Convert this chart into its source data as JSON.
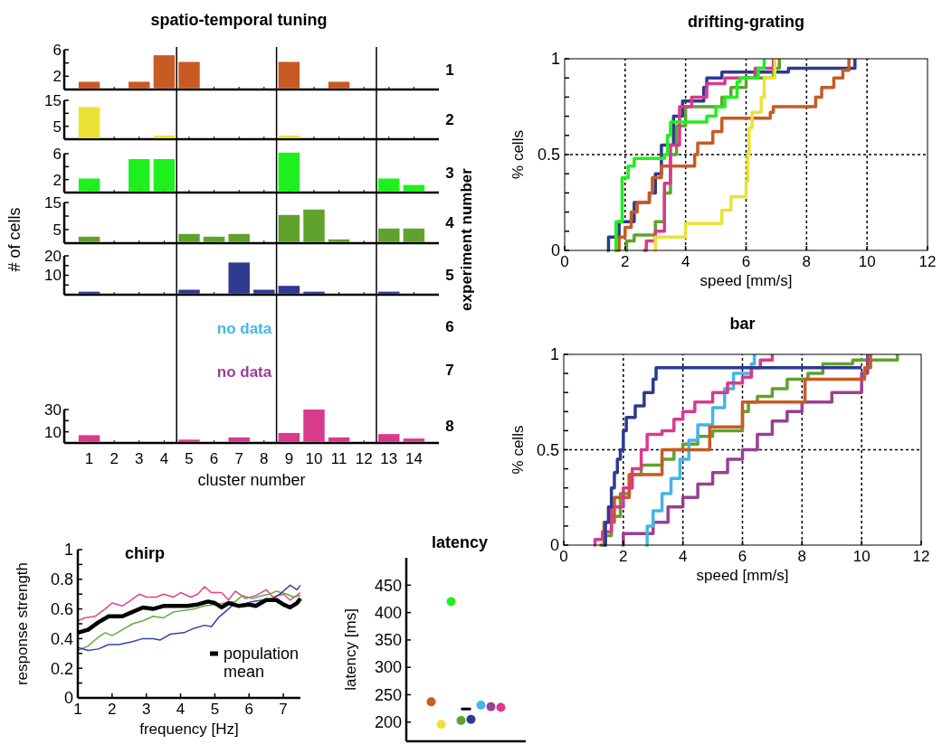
{
  "chart_data": [
    {
      "type": "bar",
      "title": "spatio-temporal tuning",
      "y2label": "1",
      "color": "#c85a24",
      "x": [
        1,
        2,
        3,
        4,
        5,
        6,
        7,
        8,
        9,
        10,
        11
      ],
      "values": [
        1,
        null,
        1,
        5,
        4,
        null,
        null,
        null,
        4,
        null,
        1
      ],
      "xlim": [
        0,
        15
      ],
      "xticks": [
        1,
        2,
        3,
        4,
        5,
        6,
        7,
        8,
        9,
        10,
        11,
        12,
        13,
        14
      ],
      "ylim": [
        0,
        6
      ],
      "yticks": [
        2,
        {
          "value": 4,
          "label": null
        },
        6
      ],
      "tick_labels": "y",
      "ref_lines": [
        {
          "axis": "x",
          "value": 4.5
        },
        {
          "axis": "x",
          "value": 8.5
        },
        {
          "axis": "x",
          "value": 12.5
        }
      ]
    },
    {
      "type": "bar",
      "y2label": "2",
      "color": "#ece235",
      "x": [
        1,
        2,
        3,
        4,
        5,
        6,
        7,
        8,
        9
      ],
      "values": [
        12,
        null,
        null,
        1,
        null,
        null,
        null,
        null,
        1
      ],
      "xlim": [
        0,
        15
      ],
      "xticks": [
        1,
        2,
        3,
        4,
        5,
        6,
        7,
        8,
        9,
        10,
        11,
        12,
        13,
        14
      ],
      "ylim": [
        0,
        15
      ],
      "yticks": [
        5,
        {
          "value": 10,
          "label": null
        },
        15
      ],
      "tick_labels": "y",
      "ref_lines": [
        {
          "axis": "x",
          "value": 4.5
        },
        {
          "axis": "x",
          "value": 8.5
        },
        {
          "axis": "x",
          "value": 12.5
        }
      ]
    },
    {
      "type": "bar",
      "y2label": "3",
      "color": "#1ef01e",
      "x": [
        1,
        2,
        3,
        4,
        5,
        6,
        7,
        8,
        9,
        10,
        11,
        12,
        13,
        14
      ],
      "values": [
        2,
        null,
        5,
        5,
        null,
        null,
        null,
        null,
        6,
        null,
        null,
        null,
        2,
        1
      ],
      "xlim": [
        0,
        15
      ],
      "xticks": [
        1,
        2,
        3,
        4,
        5,
        6,
        7,
        8,
        9,
        10,
        11,
        12,
        13,
        14
      ],
      "ylim": [
        0,
        6
      ],
      "yticks": [
        2,
        {
          "value": 4,
          "label": null
        },
        6
      ],
      "tick_labels": "y",
      "ref_lines": [
        {
          "axis": "x",
          "value": 4.5
        },
        {
          "axis": "x",
          "value": 8.5
        },
        {
          "axis": "x",
          "value": 12.5
        }
      ]
    },
    {
      "type": "bar",
      "y2label": "4",
      "ylabel": "# of cells",
      "annotations": [
        "experiment number"
      ],
      "color": "#60a22c",
      "x": [
        1,
        2,
        3,
        4,
        5,
        6,
        7,
        8,
        9,
        10,
        11,
        12,
        13,
        14
      ],
      "values": [
        2,
        null,
        null,
        null,
        3,
        2,
        3,
        null,
        10,
        12,
        1,
        null,
        5,
        5
      ],
      "xlim": [
        0,
        15
      ],
      "xticks": [
        1,
        2,
        3,
        4,
        5,
        6,
        7,
        8,
        9,
        10,
        11,
        12,
        13,
        14
      ],
      "ylim": [
        0,
        15
      ],
      "yticks": [
        5,
        {
          "value": 10,
          "label": null
        },
        15
      ],
      "tick_labels": "y",
      "ref_lines": [
        {
          "axis": "x",
          "value": 4.5
        },
        {
          "axis": "x",
          "value": 8.5
        },
        {
          "axis": "x",
          "value": 12.5
        }
      ]
    },
    {
      "type": "bar",
      "y2label": "5",
      "color": "#2e3a90",
      "x": [
        1,
        2,
        3,
        4,
        5,
        6,
        7,
        8,
        9,
        10,
        11,
        12,
        13
      ],
      "values": [
        1,
        null,
        null,
        null,
        2,
        null,
        16,
        2,
        4,
        1,
        null,
        null,
        1
      ],
      "xlim": [
        0,
        15
      ],
      "xticks": [
        1,
        2,
        3,
        4,
        5,
        6,
        7,
        8,
        9,
        10,
        11,
        12,
        13,
        14
      ],
      "ylim": [
        0,
        20
      ],
      "yticks": [
        {
          "value": 5,
          "label": null
        },
        10,
        {
          "value": 15,
          "label": null
        },
        20
      ],
      "tick_labels": "y",
      "ref_lines": [
        {
          "axis": "x",
          "value": 4.5
        },
        {
          "axis": "x",
          "value": 8.5
        },
        {
          "axis": "x",
          "value": 12.5
        }
      ]
    },
    {
      "type": "other",
      "y2label": "6",
      "annotations": [
        "no data"
      ],
      "color": "#45b5e8"
    },
    {
      "type": "other",
      "y2label": "7",
      "annotations": [
        "no data"
      ],
      "color": "#9a3f92"
    },
    {
      "type": "bar",
      "y2label": "8",
      "xlabel": "cluster number",
      "color": "#d93a8c",
      "x": [
        1,
        2,
        3,
        4,
        5,
        6,
        7,
        8,
        9,
        10,
        11,
        12,
        13,
        14
      ],
      "values": [
        6,
        null,
        null,
        null,
        2,
        null,
        4,
        null,
        8,
        29,
        4,
        null,
        7,
        3
      ],
      "xlim": [
        0,
        15
      ],
      "xticks": [
        1,
        2,
        3,
        4,
        5,
        6,
        7,
        8,
        9,
        10,
        11,
        12,
        13,
        14
      ],
      "ylim": [
        0,
        30
      ],
      "yticks": [
        10,
        {
          "value": 20,
          "label": null
        },
        30
      ],
      "ref_lines": [
        {
          "axis": "x",
          "value": 4.5
        },
        {
          "axis": "x",
          "value": 8.5
        },
        {
          "axis": "x",
          "value": 12.5
        }
      ]
    },
    {
      "type": "step",
      "title": "drifting-grating",
      "xlabel": "speed [mm/s]",
      "ylabel": "% cells",
      "xlim": [
        0,
        12
      ],
      "xticks": [
        0,
        2,
        4,
        6,
        8,
        10,
        12
      ],
      "ylim": [
        0,
        1
      ],
      "yticks": [
        0,
        {
          "value": 0.1,
          "label": null
        },
        {
          "value": 0.2,
          "label": null
        },
        {
          "value": 0.3,
          "label": null
        },
        {
          "value": 0.4,
          "label": null
        },
        0.5,
        {
          "value": 0.6,
          "label": null
        },
        {
          "value": 0.7,
          "label": null
        },
        {
          "value": 0.8,
          "label": null
        },
        {
          "value": 0.9,
          "label": null
        },
        1
      ],
      "grid": true,
      "series": [
        {
          "color": "#2e3a90",
          "x": [
            1.4,
            1.45,
            1.8,
            2.3,
            2.8,
            3.0,
            3.2,
            3.6,
            3.9,
            4.6,
            4.7,
            5.2,
            7.4,
            9.6
          ],
          "values": [
            0,
            0.07,
            0.15,
            0.25,
            0.3,
            0.4,
            0.55,
            0.7,
            0.78,
            0.85,
            0.9,
            0.93,
            0.95,
            1
          ]
        },
        {
          "color": "#c85a24",
          "x": [
            1.7,
            1.8,
            2.0,
            2.2,
            2.4,
            2.8,
            2.9,
            3.2,
            4.3,
            4.4,
            4.9,
            5.2,
            6.8,
            6.9,
            8.3,
            8.5,
            8.9,
            9.2,
            9.4
          ],
          "values": [
            0,
            0.07,
            0.12,
            0.2,
            0.25,
            0.3,
            0.38,
            0.44,
            0.5,
            0.56,
            0.62,
            0.69,
            0.72,
            0.75,
            0.8,
            0.85,
            0.9,
            0.94,
            1
          ]
        },
        {
          "color": "#60a22c",
          "x": [
            2.0,
            2.05,
            2.3,
            3.0,
            3.3,
            3.5,
            3.7,
            4.0,
            5.2,
            5.5,
            6.0,
            6.9,
            7.1
          ],
          "values": [
            0,
            0.05,
            0.08,
            0.15,
            0.3,
            0.5,
            0.65,
            0.75,
            0.8,
            0.85,
            0.9,
            0.95,
            1
          ]
        },
        {
          "color": "#d93a8c",
          "x": [
            2.6,
            2.7,
            3.0,
            3.3,
            3.5,
            3.8,
            4.2,
            4.7,
            5.3,
            6.3,
            6.9
          ],
          "values": [
            0,
            0.05,
            0.1,
            0.35,
            0.55,
            0.75,
            0.8,
            0.87,
            0.9,
            0.95,
            1
          ]
        },
        {
          "color": "#ece235",
          "x": [
            2.95,
            3.0,
            4.0,
            5.2,
            5.5,
            6.0,
            6.05,
            6.1,
            6.2,
            6.5,
            6.6,
            6.95
          ],
          "values": [
            0,
            0.07,
            0.14,
            0.21,
            0.28,
            0.36,
            0.5,
            0.64,
            0.72,
            0.8,
            0.9,
            1
          ]
        },
        {
          "color": "#1ef01e",
          "x": [
            1.65,
            1.7,
            1.9,
            2.1,
            2.3,
            3.3,
            3.4,
            3.5,
            4.7,
            5.0,
            5.3,
            5.7,
            5.8,
            6.4,
            6.6
          ],
          "values": [
            0,
            0.15,
            0.38,
            0.44,
            0.48,
            0.5,
            0.6,
            0.67,
            0.7,
            0.75,
            0.8,
            0.88,
            0.9,
            0.95,
            1
          ]
        }
      ]
    },
    {
      "type": "step",
      "title": "bar",
      "xlabel": "speed [mm/s]",
      "ylabel": "% cells",
      "xlim": [
        0,
        12
      ],
      "xticks": [
        0,
        2,
        4,
        6,
        8,
        10,
        12
      ],
      "ylim": [
        0,
        1
      ],
      "yticks": [
        0,
        {
          "value": 0.1,
          "label": null
        },
        {
          "value": 0.2,
          "label": null
        },
        {
          "value": 0.3,
          "label": null
        },
        {
          "value": 0.4,
          "label": null
        },
        0.5,
        {
          "value": 0.6,
          "label": null
        },
        {
          "value": 0.7,
          "label": null
        },
        {
          "value": 0.8,
          "label": null
        },
        {
          "value": 0.9,
          "label": null
        },
        1
      ],
      "grid": true,
      "series": [
        {
          "color": "#60a22c",
          "x": [
            1.2,
            1.4,
            1.6,
            1.9,
            2.2,
            2.6,
            3.3,
            3.7,
            4.0,
            4.5,
            5.0,
            6.0,
            6.2,
            6.5,
            7.0,
            7.5,
            8.2,
            8.7,
            9.7,
            11.2
          ],
          "values": [
            0,
            0.05,
            0.15,
            0.27,
            0.37,
            0.42,
            0.45,
            0.5,
            0.53,
            0.57,
            0.6,
            0.7,
            0.75,
            0.78,
            0.82,
            0.87,
            0.9,
            0.95,
            0.97,
            1
          ]
        },
        {
          "color": "#9a3f92",
          "x": [
            1.95,
            2.0,
            3.0,
            3.5,
            4.0,
            4.5,
            5.0,
            5.5,
            6.0,
            6.5,
            7.0,
            7.5,
            8.0,
            9.0,
            10.0,
            10.2
          ],
          "values": [
            0,
            0.06,
            0.12,
            0.2,
            0.25,
            0.32,
            0.38,
            0.45,
            0.5,
            0.58,
            0.65,
            0.7,
            0.75,
            0.8,
            0.9,
            1
          ]
        },
        {
          "color": "#45b5e8",
          "x": [
            2.75,
            2.8,
            3.0,
            3.3,
            3.6,
            3.9,
            4.2,
            4.5,
            5.0,
            5.4,
            5.7,
            6.3,
            6.4
          ],
          "values": [
            0,
            0.1,
            0.18,
            0.27,
            0.35,
            0.45,
            0.55,
            0.63,
            0.72,
            0.82,
            0.9,
            0.95,
            1
          ]
        },
        {
          "color": "#c85a24",
          "x": [
            1.3,
            1.35,
            1.7,
            2.2,
            3.3,
            4.9,
            6.0,
            8.1,
            10.1,
            10.3
          ],
          "values": [
            0,
            0.12,
            0.25,
            0.37,
            0.5,
            0.62,
            0.75,
            0.87,
            0.93,
            1
          ]
        },
        {
          "color": "#d93a8c",
          "x": [
            1.0,
            1.05,
            1.3,
            1.6,
            2.0,
            2.3,
            2.6,
            2.8,
            3.3,
            3.7,
            4.0,
            4.4,
            5.0,
            5.5,
            6.0,
            6.3,
            6.6,
            7.0
          ],
          "values": [
            0,
            0.03,
            0.07,
            0.2,
            0.3,
            0.4,
            0.5,
            0.58,
            0.6,
            0.66,
            0.7,
            0.75,
            0.8,
            0.85,
            0.88,
            0.93,
            0.97,
            1
          ]
        },
        {
          "color": "#2e3a90",
          "x": [
            1.35,
            1.4,
            1.5,
            1.6,
            1.7,
            1.8,
            1.9,
            2.0,
            2.1,
            2.4,
            2.7,
            3.0,
            3.1,
            10.0
          ],
          "values": [
            0,
            0.12,
            0.2,
            0.3,
            0.38,
            0.45,
            0.5,
            0.6,
            0.67,
            0.73,
            0.8,
            0.87,
            0.93,
            0.93
          ]
        }
      ]
    },
    {
      "type": "line",
      "title": "chirp",
      "xlabel": "frequency [Hz]",
      "ylabel": "response strength",
      "xlim": [
        1,
        7.5
      ],
      "xticks": [
        1,
        2,
        3,
        4,
        5,
        6,
        7
      ],
      "ylim": [
        0,
        1
      ],
      "yticks": [
        0,
        {
          "value": 0.1,
          "label": null
        },
        0.2,
        {
          "value": 0.3,
          "label": null
        },
        0.4,
        {
          "value": 0.5,
          "label": null
        },
        0.6,
        {
          "value": 0.7,
          "label": null
        },
        0.8,
        {
          "value": 0.9,
          "label": null
        },
        1
      ],
      "legend": "bottom right",
      "series": [
        {
          "color": "#e0458f",
          "x": [
            1,
            1.2,
            1.5,
            1.8,
            2,
            2.3,
            2.5,
            2.8,
            3,
            3.3,
            3.5,
            3.8,
            4,
            4.3,
            4.5,
            4.7,
            4.9,
            5.2,
            5.4,
            5.6,
            5.9,
            6.2,
            6.5,
            6.7,
            7,
            7.2,
            7.5
          ],
          "values": [
            0.52,
            0.54,
            0.55,
            0.6,
            0.64,
            0.62,
            0.65,
            0.7,
            0.68,
            0.68,
            0.7,
            0.68,
            0.71,
            0.68,
            0.7,
            0.75,
            0.71,
            0.71,
            0.66,
            0.72,
            0.67,
            0.69,
            0.73,
            0.68,
            0.7,
            0.66,
            0.71
          ]
        },
        {
          "color": "#5fae3b",
          "x": [
            1,
            1.3,
            1.6,
            1.8,
            2,
            2.3,
            2.6,
            2.9,
            3.2,
            3.5,
            3.8,
            4.1,
            4.4,
            4.7,
            5,
            5.3,
            5.6,
            5.8,
            6.1,
            6.4,
            6.6,
            6.8,
            7.1,
            7.3,
            7.5
          ],
          "values": [
            0.32,
            0.35,
            0.41,
            0.44,
            0.42,
            0.46,
            0.5,
            0.52,
            0.55,
            0.54,
            0.58,
            0.59,
            0.6,
            0.62,
            0.63,
            0.64,
            0.65,
            0.69,
            0.67,
            0.69,
            0.7,
            0.72,
            0.7,
            0.68,
            0.69
          ]
        },
        {
          "color": "#3344a0",
          "x": [
            1,
            1.3,
            1.6,
            1.9,
            2.2,
            2.6,
            2.9,
            3.2,
            3.4,
            3.7,
            4.1,
            4.4,
            4.7,
            4.9,
            5.1,
            5.3,
            5.5,
            5.8,
            6.1,
            6.4,
            6.7,
            6.9,
            7.2,
            7.4,
            7.5
          ],
          "values": [
            0.34,
            0.32,
            0.33,
            0.36,
            0.36,
            0.38,
            0.4,
            0.4,
            0.39,
            0.43,
            0.44,
            0.47,
            0.49,
            0.48,
            0.54,
            0.58,
            0.62,
            0.63,
            0.65,
            0.66,
            0.67,
            0.7,
            0.76,
            0.73,
            0.76
          ]
        },
        {
          "name": "population mean",
          "color": "#000000",
          "x": [
            1,
            1.3,
            1.6,
            1.9,
            2.3,
            2.6,
            2.9,
            3.2,
            3.5,
            3.8,
            4.2,
            4.5,
            4.8,
            5,
            5.2,
            5.4,
            5.7,
            6,
            6.2,
            6.5,
            6.8,
            7,
            7.2,
            7.4,
            7.5
          ],
          "values": [
            0.44,
            0.46,
            0.51,
            0.55,
            0.55,
            0.58,
            0.61,
            0.6,
            0.62,
            0.62,
            0.62,
            0.63,
            0.65,
            0.64,
            0.61,
            0.64,
            0.62,
            0.63,
            0.62,
            0.66,
            0.66,
            0.63,
            0.61,
            0.64,
            0.67
          ]
        }
      ]
    },
    {
      "type": "scatter",
      "title": "latency",
      "ylabel": "latency [ms]",
      "categories": [
        null,
        null,
        null,
        null,
        null,
        null,
        null,
        null,
        null,
        null,
        null,
        null
      ],
      "ylim": [
        165,
        500
      ],
      "yticks": [
        200,
        250,
        300,
        350,
        400,
        450
      ],
      "tick_labels": "y",
      "marker": "circle",
      "series": [
        {
          "colors": [
            null,
            null,
            "#c85a24",
            "#ece235",
            "#1ef01e",
            "#60a22c",
            "#2e3a90",
            "#45b5e8",
            "#9a3f92",
            "#d93a8c",
            null,
            null
          ],
          "values": [
            null,
            null,
            237,
            196,
            420,
            203,
            205,
            231,
            228,
            227,
            null,
            null
          ]
        },
        {
          "type": "line",
          "marker": "none",
          "color": "#000000",
          "values": [
            null,
            null,
            null,
            null,
            null,
            224,
            224,
            null,
            null,
            null,
            null,
            null
          ]
        }
      ]
    }
  ]
}
